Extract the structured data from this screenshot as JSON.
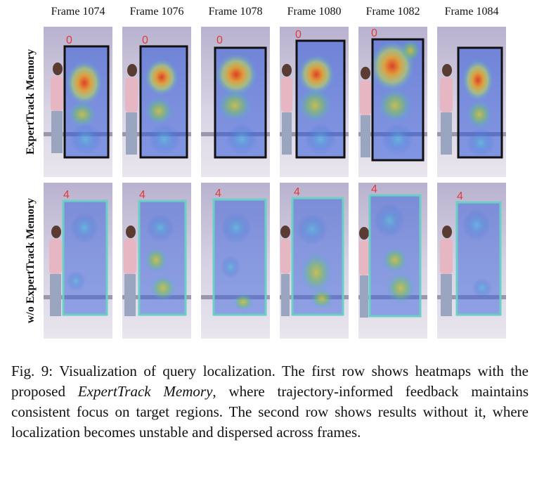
{
  "figure": {
    "columns": [
      "Frame 1074",
      "Frame 1076",
      "Frame 1078",
      "Frame 1080",
      "Frame 1082",
      "Frame 1084"
    ],
    "rows": [
      {
        "label": "ExpertTrack Memory",
        "box_color": "#111111",
        "query_id": "0",
        "id_color": "#e23a3a"
      },
      {
        "label": "w/o ExpertTrack Memory",
        "box_color": "#6ad0c6",
        "query_id": "4",
        "id_color": "#e23a3a"
      }
    ]
  },
  "caption": {
    "prefix": "Fig. 9: Visualization of query localization. The first row shows heatmaps with the proposed",
    "emph": "ExpertTrack Memory",
    "suffix": ", where trajectory-informed feedback maintains consistent focus on target regions. The second row shows results without it, where localization becomes unstable and dispersed across frames."
  }
}
